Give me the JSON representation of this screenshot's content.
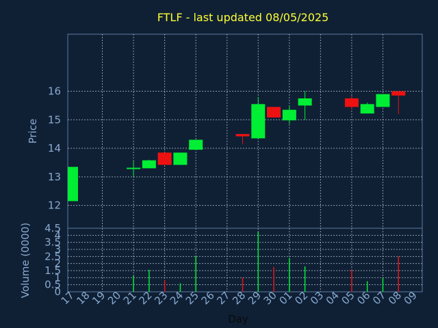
{
  "chart_data": {
    "type": "candlestick",
    "title": "FTLF - last updated 08/05/2025",
    "xlabel": "Day",
    "days": [
      "17",
      "18",
      "19",
      "20",
      "21",
      "22",
      "23",
      "24",
      "25",
      "26",
      "27",
      "28",
      "29",
      "30",
      "01",
      "02",
      "03",
      "04",
      "05",
      "06",
      "07",
      "08",
      "09"
    ],
    "price": {
      "ylabel": "Price",
      "ylim": [
        11.2,
        18.0
      ],
      "yticks": [
        12,
        13,
        14,
        15,
        16
      ],
      "candles": [
        {
          "day": "17",
          "open": 12.15,
          "close": 13.35,
          "high": 13.35,
          "low": 12.15
        },
        {
          "day": "21",
          "open": 13.3,
          "close": 13.32,
          "high": 13.55,
          "low": 13.0
        },
        {
          "day": "22",
          "open": 13.3,
          "close": 13.58,
          "high": 13.6,
          "low": 13.3
        },
        {
          "day": "23",
          "open": 13.85,
          "close": 13.42,
          "high": 13.85,
          "low": 13.42
        },
        {
          "day": "24",
          "open": 13.42,
          "close": 13.85,
          "high": 13.85,
          "low": 13.42
        },
        {
          "day": "25",
          "open": 13.95,
          "close": 14.3,
          "high": 14.3,
          "low": 13.95
        },
        {
          "day": "28",
          "open": 14.5,
          "close": 14.42,
          "high": 14.5,
          "low": 14.15
        },
        {
          "day": "29",
          "open": 14.35,
          "close": 15.55,
          "high": 15.8,
          "low": 14.35
        },
        {
          "day": "30",
          "open": 15.45,
          "close": 15.08,
          "high": 15.45,
          "low": 15.08
        },
        {
          "day": "01",
          "open": 14.98,
          "close": 15.35,
          "high": 15.5,
          "low": 14.85
        },
        {
          "day": "02",
          "open": 15.5,
          "close": 15.75,
          "high": 16.0,
          "low": 15.0
        },
        {
          "day": "05",
          "open": 15.75,
          "close": 15.45,
          "high": 15.85,
          "low": 15.35
        },
        {
          "day": "06",
          "open": 15.22,
          "close": 15.55,
          "high": 15.6,
          "low": 15.22
        },
        {
          "day": "07",
          "open": 15.45,
          "close": 15.9,
          "high": 15.9,
          "low": 15.45
        },
        {
          "day": "08",
          "open": 16.0,
          "close": 15.85,
          "high": 16.0,
          "low": 15.2
        }
      ]
    },
    "volume": {
      "ylabel": "Volume (0000)",
      "ylim": [
        0,
        4.5
      ],
      "yticks": [
        "0",
        "0.5",
        "1",
        "1.5",
        "2",
        "2.5",
        "3",
        "3.5",
        "4",
        "4.5"
      ],
      "bars": [
        {
          "day": "21",
          "value": 1.15,
          "direction": "up"
        },
        {
          "day": "22",
          "value": 1.55,
          "direction": "up"
        },
        {
          "day": "23",
          "value": 0.8,
          "direction": "down"
        },
        {
          "day": "24",
          "value": 0.6,
          "direction": "up"
        },
        {
          "day": "25",
          "value": 2.55,
          "direction": "up"
        },
        {
          "day": "28",
          "value": 1.0,
          "direction": "down"
        },
        {
          "day": "29",
          "value": 4.25,
          "direction": "up"
        },
        {
          "day": "30",
          "value": 1.75,
          "direction": "down"
        },
        {
          "day": "01",
          "value": 2.4,
          "direction": "up"
        },
        {
          "day": "02",
          "value": 1.8,
          "direction": "up"
        },
        {
          "day": "05",
          "value": 1.55,
          "direction": "down"
        },
        {
          "day": "06",
          "value": 0.75,
          "direction": "up"
        },
        {
          "day": "07",
          "value": 0.95,
          "direction": "up"
        },
        {
          "day": "08",
          "value": 2.5,
          "direction": "down"
        }
      ]
    },
    "colors": {
      "background": "#0f2035",
      "up": "#00ee33",
      "down": "#ee1111",
      "title": "#ffff33",
      "axis_text": "#8aaad0",
      "grid": "#b8c4d4"
    },
    "grid": true
  }
}
